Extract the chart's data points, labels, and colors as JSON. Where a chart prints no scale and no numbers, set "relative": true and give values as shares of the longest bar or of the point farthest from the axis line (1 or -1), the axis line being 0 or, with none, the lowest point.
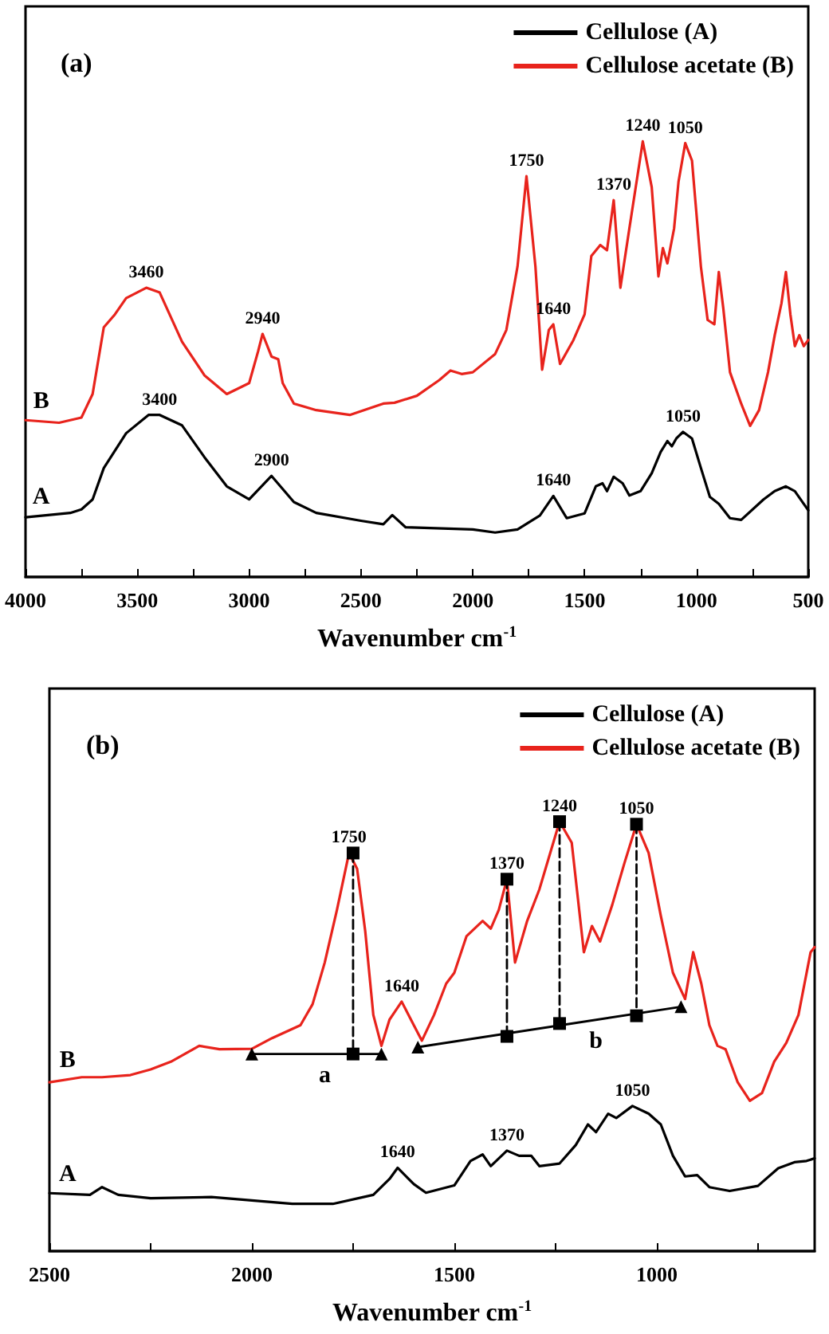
{
  "chart_data": [
    {
      "type": "line",
      "title": "(a)",
      "xlabel": "Wavenumber cm$^{-1}$",
      "relative": true,
      "legend": "top right",
      "marker": "none",
      "xlim": [
        4000,
        500
      ],
      "xticks": [
        4000,
        {
          "value": 3750,
          "label": null
        },
        3500,
        {
          "value": 3250,
          "label": null
        },
        3000,
        {
          "value": 2750,
          "label": null
        },
        2500,
        {
          "value": 2250,
          "label": null
        },
        2000,
        {
          "value": 1750,
          "label": null
        },
        1500,
        {
          "value": 1250,
          "label": null
        },
        1000,
        {
          "value": 750,
          "label": null
        },
        500
      ],
      "series": [
        {
          "name": "Cellulose (A)",
          "color": "#000000",
          "x": [
            4000,
            3800,
            3750,
            3700,
            3650,
            3550,
            3450,
            3400,
            3300,
            3200,
            3100,
            3000,
            2900,
            2800,
            2700,
            2500,
            2400,
            2360,
            2300,
            2000,
            1900,
            1800,
            1700,
            1640,
            1580,
            1500,
            1450,
            1420,
            1400,
            1370,
            1330,
            1300,
            1250,
            1200,
            1160,
            1130,
            1110,
            1090,
            1060,
            1020,
            980,
            940,
            900,
            850,
            800,
            700,
            650,
            600,
            560,
            500
          ],
          "values": [
            0.137,
            0.147,
            0.155,
            0.178,
            0.25,
            0.33,
            0.372,
            0.372,
            0.348,
            0.275,
            0.208,
            0.178,
            0.232,
            0.172,
            0.147,
            0.129,
            0.121,
            0.142,
            0.114,
            0.109,
            0.102,
            0.109,
            0.141,
            0.186,
            0.135,
            0.146,
            0.208,
            0.215,
            0.197,
            0.23,
            0.215,
            0.187,
            0.197,
            0.238,
            0.287,
            0.312,
            0.3,
            0.318,
            0.333,
            0.318,
            0.25,
            0.184,
            0.168,
            0.135,
            0.131,
            0.178,
            0.197,
            0.208,
            0.197,
            0.153
          ]
        },
        {
          "name": "Cellulose acetate (B)",
          "color": "#e8231c",
          "x": [
            4000,
            3850,
            3750,
            3700,
            3650,
            3600,
            3550,
            3460,
            3400,
            3300,
            3200,
            3100,
            3000,
            2960,
            2940,
            2900,
            2870,
            2850,
            2800,
            2700,
            2550,
            2400,
            2350,
            2250,
            2150,
            2100,
            2050,
            2000,
            1900,
            1850,
            1800,
            1760,
            1720,
            1690,
            1660,
            1640,
            1610,
            1550,
            1500,
            1470,
            1430,
            1400,
            1370,
            1340,
            1300,
            1240,
            1200,
            1170,
            1150,
            1130,
            1100,
            1080,
            1050,
            1020,
            980,
            950,
            920,
            900,
            880,
            850,
            800,
            760,
            720,
            680,
            650,
            620,
            600,
            580,
            560,
            540,
            520,
            500
          ],
          "values": [
            0.36,
            0.354,
            0.366,
            0.42,
            0.573,
            0.603,
            0.64,
            0.664,
            0.653,
            0.54,
            0.463,
            0.42,
            0.445,
            0.518,
            0.558,
            0.506,
            0.5,
            0.445,
            0.398,
            0.383,
            0.372,
            0.398,
            0.4,
            0.416,
            0.452,
            0.474,
            0.466,
            0.47,
            0.512,
            0.567,
            0.713,
            0.92,
            0.713,
            0.476,
            0.567,
            0.58,
            0.489,
            0.544,
            0.603,
            0.737,
            0.762,
            0.75,
            0.865,
            0.664,
            0.8,
            1.0,
            0.895,
            0.69,
            0.755,
            0.72,
            0.8,
            0.908,
            0.996,
            0.956,
            0.712,
            0.59,
            0.58,
            0.7,
            0.617,
            0.47,
            0.398,
            0.347,
            0.383,
            0.47,
            0.555,
            0.628,
            0.7,
            0.603,
            0.53,
            0.555,
            0.53,
            0.544
          ]
        }
      ],
      "annotations": [
        {
          "text": "B",
          "x": 3930,
          "y": 0.36
        },
        {
          "text": "A",
          "x": 3930,
          "y": 0.14
        },
        {
          "text": "3460",
          "x": 3460,
          "y": 0.664
        },
        {
          "text": "2940",
          "x": 2940,
          "y": 0.558
        },
        {
          "text": "1750",
          "x": 1760,
          "y": 0.92
        },
        {
          "text": "1640",
          "x": 1640,
          "y": 0.58
        },
        {
          "text": "1370",
          "x": 1370,
          "y": 0.865
        },
        {
          "text": "1240",
          "x": 1240,
          "y": 1.0
        },
        {
          "text": "1050",
          "x": 1050,
          "y": 0.996
        },
        {
          "text": "3400",
          "x": 3400,
          "y": 0.372
        },
        {
          "text": "2900",
          "x": 2900,
          "y": 0.232
        },
        {
          "text": "1640",
          "x": 1640,
          "y": 0.186
        },
        {
          "text": "1050",
          "x": 1060,
          "y": 0.333
        }
      ]
    },
    {
      "type": "line",
      "title": "(b)",
      "xlabel": "Wavenumber cm$^{-1}$",
      "relative": true,
      "legend": "top right",
      "marker": "none",
      "xlim": [
        2500,
        610
      ],
      "xticks": [
        2500,
        {
          "value": 2250,
          "label": null
        },
        2000,
        {
          "value": 1750,
          "label": null
        },
        1500,
        {
          "value": 1250,
          "label": null
        },
        1000,
        {
          "value": 750,
          "label": null
        }
      ],
      "series": [
        {
          "name": "Cellulose (A)",
          "color": "#000000",
          "x": [
            2500,
            2400,
            2370,
            2330,
            2250,
            2100,
            1900,
            1800,
            1700,
            1660,
            1640,
            1600,
            1570,
            1500,
            1460,
            1430,
            1410,
            1370,
            1340,
            1310,
            1290,
            1240,
            1200,
            1170,
            1150,
            1120,
            1100,
            1060,
            1020,
            990,
            960,
            930,
            900,
            870,
            820,
            750,
            700,
            660,
            630,
            610
          ],
          "values": [
            0.135,
            0.131,
            0.149,
            0.131,
            0.123,
            0.126,
            0.11,
            0.11,
            0.131,
            0.168,
            0.194,
            0.156,
            0.136,
            0.153,
            0.21,
            0.225,
            0.198,
            0.234,
            0.222,
            0.222,
            0.198,
            0.204,
            0.247,
            0.295,
            0.277,
            0.32,
            0.31,
            0.338,
            0.32,
            0.295,
            0.222,
            0.174,
            0.177,
            0.149,
            0.14,
            0.152,
            0.193,
            0.207,
            0.21,
            0.216
          ]
        },
        {
          "name": "Cellulose acetate (B)",
          "color": "#e8231c",
          "x": [
            2500,
            2420,
            2370,
            2300,
            2250,
            2200,
            2130,
            2080,
            2000,
            1950,
            1880,
            1850,
            1820,
            1790,
            1760,
            1740,
            1720,
            1700,
            1680,
            1660,
            1630,
            1600,
            1580,
            1550,
            1520,
            1500,
            1470,
            1430,
            1410,
            1390,
            1370,
            1350,
            1320,
            1290,
            1240,
            1210,
            1180,
            1160,
            1140,
            1110,
            1080,
            1050,
            1020,
            990,
            960,
            930,
            910,
            890,
            870,
            850,
            830,
            800,
            770,
            740,
            710,
            680,
            650,
            620,
            610
          ],
          "values": [
            0.393,
            0.405,
            0.405,
            0.41,
            0.423,
            0.441,
            0.478,
            0.47,
            0.471,
            0.496,
            0.526,
            0.575,
            0.672,
            0.794,
            0.927,
            0.89,
            0.745,
            0.55,
            0.478,
            0.539,
            0.581,
            0.526,
            0.49,
            0.55,
            0.623,
            0.648,
            0.733,
            0.769,
            0.751,
            0.795,
            0.866,
            0.672,
            0.769,
            0.842,
            1.0,
            0.951,
            0.696,
            0.757,
            0.721,
            0.806,
            0.903,
            0.994,
            0.927,
            0.781,
            0.648,
            0.587,
            0.696,
            0.623,
            0.526,
            0.478,
            0.47,
            0.393,
            0.35,
            0.368,
            0.441,
            0.485,
            0.55,
            0.696,
            0.708
          ]
        },
        {
          "color": "#000000",
          "marker": "triangle",
          "x": [
            2000,
            1680
          ],
          "values": [
            0.459,
            0.459
          ]
        },
        {
          "color": "#000000",
          "marker": "triangle",
          "x": [
            1590,
            940
          ],
          "values": [
            0.475,
            0.569
          ]
        },
        {
          "color": "#000000",
          "marker": "square",
          "line_style": "dashed",
          "x": [
            1750,
            1750
          ],
          "values": [
            0.927,
            0.459
          ]
        },
        {
          "color": "#000000",
          "marker": "square",
          "line_style": "dashed",
          "x": [
            1370,
            1370
          ],
          "values": [
            0.866,
            0.5
          ]
        },
        {
          "color": "#000000",
          "marker": "square",
          "line_style": "dashed",
          "x": [
            1240,
            1240
          ],
          "values": [
            1.0,
            0.53
          ]
        },
        {
          "color": "#000000",
          "marker": "square",
          "line_style": "dashed",
          "x": [
            1050,
            1050
          ],
          "values": [
            0.994,
            0.548
          ]
        }
      ],
      "annotations": [
        {
          "text": "B",
          "x": 2455,
          "y": 0.4
        },
        {
          "text": "A",
          "x": 2455,
          "y": 0.135
        },
        {
          "text": "1750",
          "x": 1760,
          "y": 0.927
        },
        {
          "text": "1640",
          "x": 1630,
          "y": 0.581
        },
        {
          "text": "1370",
          "x": 1370,
          "y": 0.866
        },
        {
          "text": "1240",
          "x": 1240,
          "y": 1.0
        },
        {
          "text": "1050",
          "x": 1050,
          "y": 0.994
        },
        {
          "text": "a",
          "x": 1820,
          "y": 0.459
        },
        {
          "text": "b",
          "x": 1150,
          "y": 0.539
        },
        {
          "text": "1640",
          "x": 1640,
          "y": 0.194
        },
        {
          "text": "1370",
          "x": 1370,
          "y": 0.234
        },
        {
          "text": "1050",
          "x": 1060,
          "y": 0.338
        }
      ]
    }
  ]
}
